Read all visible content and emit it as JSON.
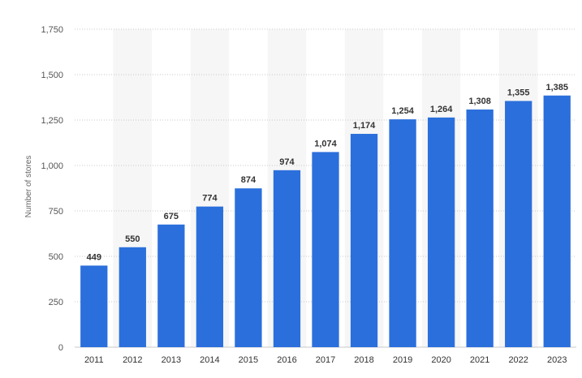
{
  "chart_data": {
    "type": "bar",
    "title": "",
    "xlabel": "",
    "ylabel": "Number of stores",
    "categories": [
      "2011",
      "2012",
      "2013",
      "2014",
      "2015",
      "2016",
      "2017",
      "2018",
      "2019",
      "2020",
      "2021",
      "2022",
      "2023"
    ],
    "values": [
      449,
      550,
      675,
      774,
      874,
      974,
      1074,
      1174,
      1254,
      1264,
      1308,
      1355,
      1385
    ],
    "value_labels": [
      "449",
      "550",
      "675",
      "774",
      "874",
      "974",
      "1,074",
      "1,174",
      "1,254",
      "1,264",
      "1,308",
      "1,355",
      "1,385"
    ],
    "ylim": [
      0,
      1750
    ],
    "yticks": [
      0,
      250,
      500,
      750,
      1000,
      1250,
      1500,
      1750
    ],
    "ytick_labels": [
      "0",
      "250",
      "500",
      "750",
      "1,000",
      "1,250",
      "1,500",
      "1,750"
    ],
    "grid": true,
    "bar_color": "#2b6fdc",
    "band_color": "#f6f6f6",
    "grid_color": "#c8c8c8"
  }
}
